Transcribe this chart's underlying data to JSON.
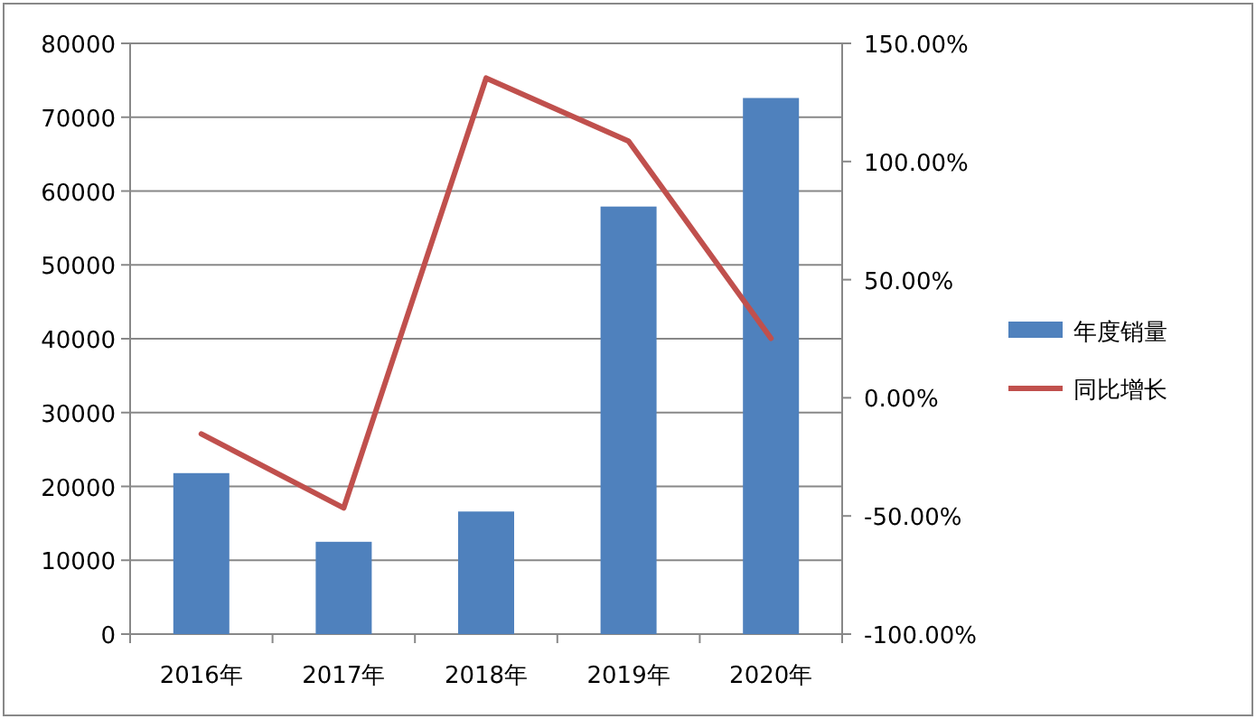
{
  "chart_data": {
    "type": "bar",
    "categories": [
      "2016年",
      "2017年",
      "2018年",
      "2019年",
      "2020年"
    ],
    "series": [
      {
        "name": "年度销量",
        "color": "#4f81bd",
        "values": [
          21800,
          12500,
          16600,
          57900,
          72600
        ]
      },
      {
        "name": "同比增长",
        "type": "line",
        "axis": "y2",
        "color": "#c0504d",
        "values": [
          -15.3,
          -46.6,
          135.3,
          108.6,
          25.2
        ]
      }
    ],
    "ylim": [
      0,
      80000
    ],
    "yticks": [
      0,
      10000,
      20000,
      30000,
      40000,
      50000,
      60000,
      70000,
      80000
    ],
    "y2lim": [
      -100,
      150
    ],
    "y2ticks": [
      {
        "value": -100,
        "label": "-100.00%"
      },
      {
        "value": -50,
        "label": "-50.00%"
      },
      {
        "value": 0,
        "label": "0.00%"
      },
      {
        "value": 50,
        "label": "50.00%"
      },
      {
        "value": 100,
        "label": "100.00%"
      },
      {
        "value": 150,
        "label": "150.00%"
      }
    ],
    "grid": "y",
    "legend": "right"
  }
}
